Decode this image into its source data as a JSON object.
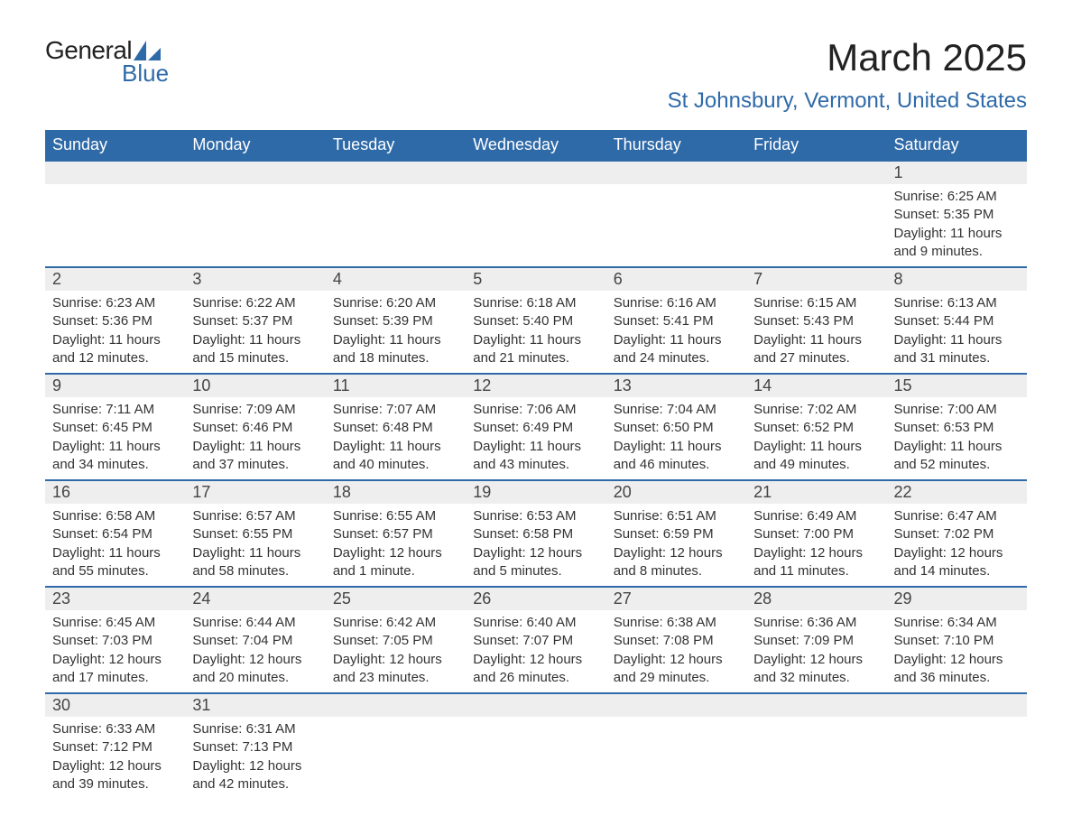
{
  "logo": {
    "general": "General",
    "blue": "Blue"
  },
  "title": "March 2025",
  "location": "St Johnsbury, Vermont, United States",
  "colors": {
    "header_bg": "#2f6aa8",
    "header_text": "#ffffff",
    "daynum_bg": "#eeeeee",
    "row_border": "#2f6aa8",
    "body_text": "#333333",
    "title_text": "#222222",
    "location_text": "#2f6aa8",
    "background": "#ffffff"
  },
  "typography": {
    "month_title_fontsize": 42,
    "location_fontsize": 24,
    "weekday_fontsize": 18,
    "daynum_fontsize": 18,
    "cell_fontsize": 15,
    "font_family": "Arial"
  },
  "layout": {
    "columns": 7,
    "column_width_pct": 14.28
  },
  "weekdays": [
    "Sunday",
    "Monday",
    "Tuesday",
    "Wednesday",
    "Thursday",
    "Friday",
    "Saturday"
  ],
  "weeks": [
    [
      {
        "empty": true
      },
      {
        "empty": true
      },
      {
        "empty": true
      },
      {
        "empty": true
      },
      {
        "empty": true
      },
      {
        "empty": true
      },
      {
        "day": "1",
        "sunrise": "Sunrise: 6:25 AM",
        "sunset": "Sunset: 5:35 PM",
        "daylight1": "Daylight: 11 hours",
        "daylight2": "and 9 minutes."
      }
    ],
    [
      {
        "day": "2",
        "sunrise": "Sunrise: 6:23 AM",
        "sunset": "Sunset: 5:36 PM",
        "daylight1": "Daylight: 11 hours",
        "daylight2": "and 12 minutes."
      },
      {
        "day": "3",
        "sunrise": "Sunrise: 6:22 AM",
        "sunset": "Sunset: 5:37 PM",
        "daylight1": "Daylight: 11 hours",
        "daylight2": "and 15 minutes."
      },
      {
        "day": "4",
        "sunrise": "Sunrise: 6:20 AM",
        "sunset": "Sunset: 5:39 PM",
        "daylight1": "Daylight: 11 hours",
        "daylight2": "and 18 minutes."
      },
      {
        "day": "5",
        "sunrise": "Sunrise: 6:18 AM",
        "sunset": "Sunset: 5:40 PM",
        "daylight1": "Daylight: 11 hours",
        "daylight2": "and 21 minutes."
      },
      {
        "day": "6",
        "sunrise": "Sunrise: 6:16 AM",
        "sunset": "Sunset: 5:41 PM",
        "daylight1": "Daylight: 11 hours",
        "daylight2": "and 24 minutes."
      },
      {
        "day": "7",
        "sunrise": "Sunrise: 6:15 AM",
        "sunset": "Sunset: 5:43 PM",
        "daylight1": "Daylight: 11 hours",
        "daylight2": "and 27 minutes."
      },
      {
        "day": "8",
        "sunrise": "Sunrise: 6:13 AM",
        "sunset": "Sunset: 5:44 PM",
        "daylight1": "Daylight: 11 hours",
        "daylight2": "and 31 minutes."
      }
    ],
    [
      {
        "day": "9",
        "sunrise": "Sunrise: 7:11 AM",
        "sunset": "Sunset: 6:45 PM",
        "daylight1": "Daylight: 11 hours",
        "daylight2": "and 34 minutes."
      },
      {
        "day": "10",
        "sunrise": "Sunrise: 7:09 AM",
        "sunset": "Sunset: 6:46 PM",
        "daylight1": "Daylight: 11 hours",
        "daylight2": "and 37 minutes."
      },
      {
        "day": "11",
        "sunrise": "Sunrise: 7:07 AM",
        "sunset": "Sunset: 6:48 PM",
        "daylight1": "Daylight: 11 hours",
        "daylight2": "and 40 minutes."
      },
      {
        "day": "12",
        "sunrise": "Sunrise: 7:06 AM",
        "sunset": "Sunset: 6:49 PM",
        "daylight1": "Daylight: 11 hours",
        "daylight2": "and 43 minutes."
      },
      {
        "day": "13",
        "sunrise": "Sunrise: 7:04 AM",
        "sunset": "Sunset: 6:50 PM",
        "daylight1": "Daylight: 11 hours",
        "daylight2": "and 46 minutes."
      },
      {
        "day": "14",
        "sunrise": "Sunrise: 7:02 AM",
        "sunset": "Sunset: 6:52 PM",
        "daylight1": "Daylight: 11 hours",
        "daylight2": "and 49 minutes."
      },
      {
        "day": "15",
        "sunrise": "Sunrise: 7:00 AM",
        "sunset": "Sunset: 6:53 PM",
        "daylight1": "Daylight: 11 hours",
        "daylight2": "and 52 minutes."
      }
    ],
    [
      {
        "day": "16",
        "sunrise": "Sunrise: 6:58 AM",
        "sunset": "Sunset: 6:54 PM",
        "daylight1": "Daylight: 11 hours",
        "daylight2": "and 55 minutes."
      },
      {
        "day": "17",
        "sunrise": "Sunrise: 6:57 AM",
        "sunset": "Sunset: 6:55 PM",
        "daylight1": "Daylight: 11 hours",
        "daylight2": "and 58 minutes."
      },
      {
        "day": "18",
        "sunrise": "Sunrise: 6:55 AM",
        "sunset": "Sunset: 6:57 PM",
        "daylight1": "Daylight: 12 hours",
        "daylight2": "and 1 minute."
      },
      {
        "day": "19",
        "sunrise": "Sunrise: 6:53 AM",
        "sunset": "Sunset: 6:58 PM",
        "daylight1": "Daylight: 12 hours",
        "daylight2": "and 5 minutes."
      },
      {
        "day": "20",
        "sunrise": "Sunrise: 6:51 AM",
        "sunset": "Sunset: 6:59 PM",
        "daylight1": "Daylight: 12 hours",
        "daylight2": "and 8 minutes."
      },
      {
        "day": "21",
        "sunrise": "Sunrise: 6:49 AM",
        "sunset": "Sunset: 7:00 PM",
        "daylight1": "Daylight: 12 hours",
        "daylight2": "and 11 minutes."
      },
      {
        "day": "22",
        "sunrise": "Sunrise: 6:47 AM",
        "sunset": "Sunset: 7:02 PM",
        "daylight1": "Daylight: 12 hours",
        "daylight2": "and 14 minutes."
      }
    ],
    [
      {
        "day": "23",
        "sunrise": "Sunrise: 6:45 AM",
        "sunset": "Sunset: 7:03 PM",
        "daylight1": "Daylight: 12 hours",
        "daylight2": "and 17 minutes."
      },
      {
        "day": "24",
        "sunrise": "Sunrise: 6:44 AM",
        "sunset": "Sunset: 7:04 PM",
        "daylight1": "Daylight: 12 hours",
        "daylight2": "and 20 minutes."
      },
      {
        "day": "25",
        "sunrise": "Sunrise: 6:42 AM",
        "sunset": "Sunset: 7:05 PM",
        "daylight1": "Daylight: 12 hours",
        "daylight2": "and 23 minutes."
      },
      {
        "day": "26",
        "sunrise": "Sunrise: 6:40 AM",
        "sunset": "Sunset: 7:07 PM",
        "daylight1": "Daylight: 12 hours",
        "daylight2": "and 26 minutes."
      },
      {
        "day": "27",
        "sunrise": "Sunrise: 6:38 AM",
        "sunset": "Sunset: 7:08 PM",
        "daylight1": "Daylight: 12 hours",
        "daylight2": "and 29 minutes."
      },
      {
        "day": "28",
        "sunrise": "Sunrise: 6:36 AM",
        "sunset": "Sunset: 7:09 PM",
        "daylight1": "Daylight: 12 hours",
        "daylight2": "and 32 minutes."
      },
      {
        "day": "29",
        "sunrise": "Sunrise: 6:34 AM",
        "sunset": "Sunset: 7:10 PM",
        "daylight1": "Daylight: 12 hours",
        "daylight2": "and 36 minutes."
      }
    ],
    [
      {
        "day": "30",
        "sunrise": "Sunrise: 6:33 AM",
        "sunset": "Sunset: 7:12 PM",
        "daylight1": "Daylight: 12 hours",
        "daylight2": "and 39 minutes."
      },
      {
        "day": "31",
        "sunrise": "Sunrise: 6:31 AM",
        "sunset": "Sunset: 7:13 PM",
        "daylight1": "Daylight: 12 hours",
        "daylight2": "and 42 minutes."
      },
      {
        "empty": true
      },
      {
        "empty": true
      },
      {
        "empty": true
      },
      {
        "empty": true
      },
      {
        "empty": true
      }
    ]
  ]
}
